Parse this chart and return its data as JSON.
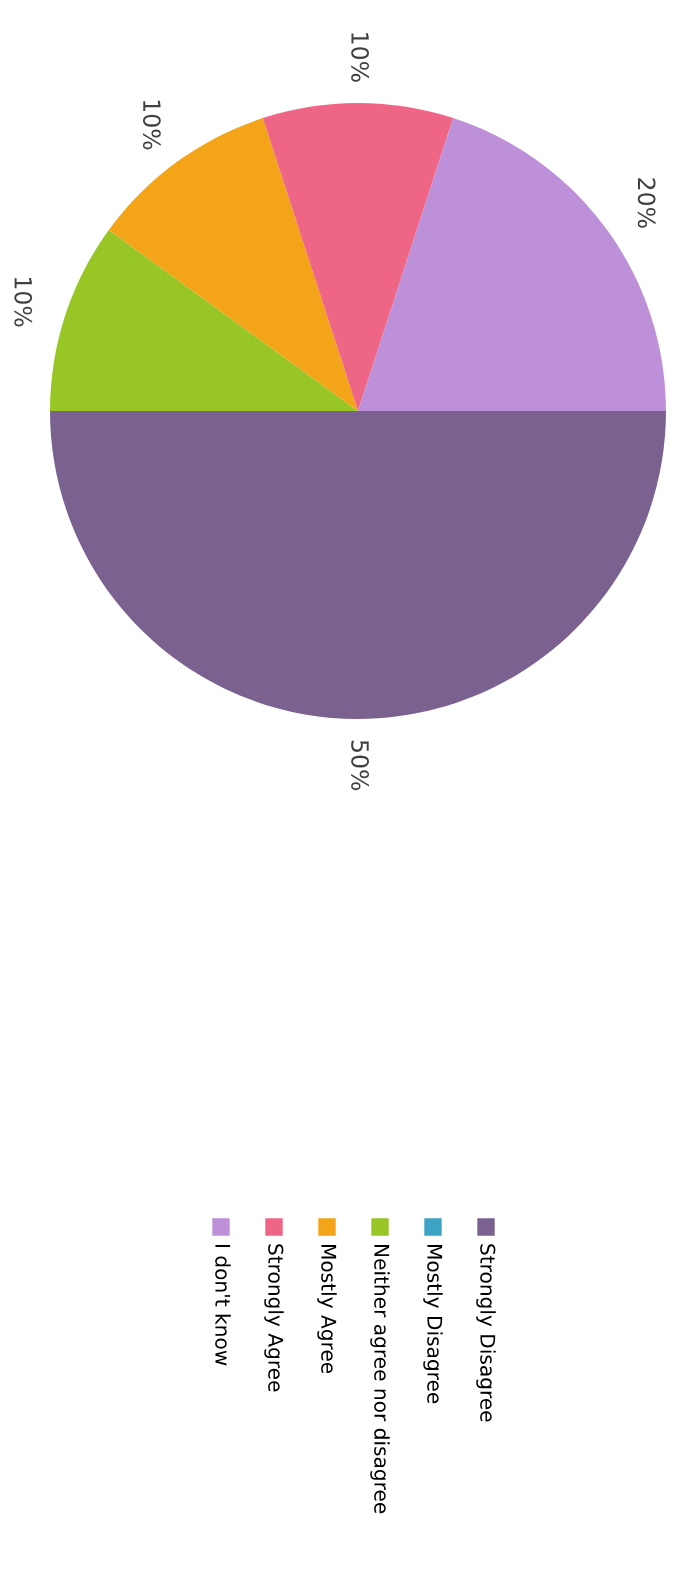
{
  "chart_data": {
    "type": "pie",
    "categories": [
      "Strongly Disagree",
      "Mostly Disagree",
      "Neither agree nor disagree",
      "Mostly Agree",
      "Strongly Agree",
      "I don't know"
    ],
    "values": [
      50,
      0,
      10,
      10,
      10,
      20
    ],
    "colors": [
      "#7b6190",
      "#3da2c4",
      "#97c626",
      "#f4a418",
      "#ef6586",
      "#be90da"
    ],
    "value_labels": [
      "50%",
      null,
      "10%",
      "10%",
      "10%",
      "20%"
    ],
    "legend": "bottom"
  }
}
